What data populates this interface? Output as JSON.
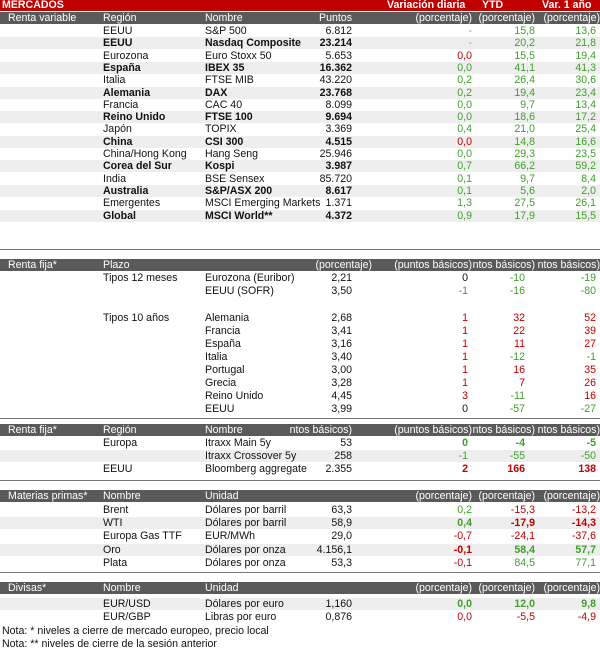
{
  "colors": {
    "accent": "#c00000",
    "header_bg": "#5a5a5a",
    "positive": "#3f9f2a",
    "negative": "#c00000",
    "neutral": "#9a9a9a"
  },
  "title": "MERCADOS",
  "title_cols": [
    "Variación diaria",
    "YTD",
    "Var. 1 año"
  ],
  "rv": {
    "header": [
      "Renta variable",
      "Región",
      "Nombre",
      "Puntos",
      "(porcentaje)",
      "(porcentaje)",
      "(porcentaje)"
    ],
    "rows": [
      {
        "region": "EEUU",
        "name": "S&P 500",
        "points": "6.812",
        "daily": "-",
        "ytd": "15,8",
        "y1": "13,6",
        "dc": "gy",
        "yc": "g",
        "ac": "g",
        "rb": false
      },
      {
        "region": "EEUU",
        "name": "Nasdaq Composite",
        "points": "23.214",
        "daily": "-",
        "ytd": "20,2",
        "y1": "21,8",
        "dc": "gy",
        "yc": "g",
        "ac": "g",
        "rb": true
      },
      {
        "region": "Eurozona",
        "name": "Euro Stoxx 50",
        "points": "5.653",
        "daily": "0,0",
        "ytd": "15,5",
        "y1": "19,4",
        "dc": "rd",
        "yc": "g",
        "ac": "g",
        "rb": false
      },
      {
        "region": "España",
        "name": "IBEX 35",
        "points": "16.362",
        "daily": "0,0",
        "ytd": "41,1",
        "y1": "41,3",
        "dc": "g",
        "yc": "g",
        "ac": "g",
        "rb": true
      },
      {
        "region": "Italia",
        "name": "FTSE MIB",
        "points": "43.220",
        "daily": "0,2",
        "ytd": "26,4",
        "y1": "30,6",
        "dc": "g",
        "yc": "g",
        "ac": "g",
        "rb": false
      },
      {
        "region": "Alemania",
        "name": "DAX",
        "points": "23.768",
        "daily": "0,2",
        "ytd": "19,4",
        "y1": "23,4",
        "dc": "g",
        "yc": "g",
        "ac": "g",
        "rb": true
      },
      {
        "region": "Francia",
        "name": "CAC 40",
        "points": "8.099",
        "daily": "0,0",
        "ytd": "9,7",
        "y1": "13,4",
        "dc": "g",
        "yc": "g",
        "ac": "g",
        "rb": false
      },
      {
        "region": "Reino Unido",
        "name": "FTSE 100",
        "points": "9.694",
        "daily": "0,0",
        "ytd": "18,6",
        "y1": "17,2",
        "dc": "g",
        "yc": "g",
        "ac": "g",
        "rb": true
      },
      {
        "region": "Japón",
        "name": "TOPIX",
        "points": "3.369",
        "daily": "0,4",
        "ytd": "21,0",
        "y1": "25,4",
        "dc": "g",
        "yc": "g",
        "ac": "g",
        "rb": false
      },
      {
        "region": "China",
        "name": "CSI 300",
        "points": "4.515",
        "daily": "0,0",
        "ytd": "14,8",
        "y1": "16,6",
        "dc": "rd",
        "yc": "g",
        "ac": "g",
        "rb": true
      },
      {
        "region": "China/Hong Kong",
        "name": "Hang Seng",
        "points": "25.946",
        "daily": "0,0",
        "ytd": "29,3",
        "y1": "23,5",
        "dc": "g",
        "yc": "g",
        "ac": "g",
        "rb": false
      },
      {
        "region": "Corea del Sur",
        "name": "Kospi",
        "points": "3.987",
        "daily": "0,7",
        "ytd": "66,2",
        "y1": "59,2",
        "dc": "g",
        "yc": "g",
        "ac": "g",
        "rb": true
      },
      {
        "region": "India",
        "name": "BSE Sensex",
        "points": "85.720",
        "daily": "0,1",
        "ytd": "9,7",
        "y1": "8,4",
        "dc": "g",
        "yc": "g",
        "ac": "g",
        "rb": false
      },
      {
        "region": "Australia",
        "name": "S&P/ASX 200",
        "points": "8.617",
        "daily": "0,1",
        "ytd": "5,6",
        "y1": "2,0",
        "dc": "g",
        "yc": "g",
        "ac": "g",
        "rb": true
      },
      {
        "region": "Emergentes",
        "name": "MSCI Emerging Markets",
        "points": "1.371",
        "daily": "1,3",
        "ytd": "27,5",
        "y1": "26,1",
        "dc": "g",
        "yc": "g",
        "ac": "g",
        "rb": false
      },
      {
        "region": "Global",
        "name": "MSCI World**",
        "points": "4.372",
        "daily": "0,9",
        "ytd": "17,9",
        "y1": "15,5",
        "dc": "g",
        "yc": "g",
        "ac": "g",
        "rb": true
      }
    ]
  },
  "rf": {
    "header": [
      "Renta fija*",
      "Plazo",
      "(porcentaje)",
      "(puntos básicos)",
      "ntos básicos)",
      "ntos básicos)"
    ],
    "rows": [
      {
        "plazo": "Tipos 12 meses",
        "name": "Eurozona (Euribor)",
        "val": "2,21",
        "d": "0",
        "ytd": "-10",
        "y1": "-19",
        "dc": "k",
        "yc": "g",
        "ac": "g",
        "rb": false
      },
      {
        "plazo": "",
        "name": "EEUU (SOFR)",
        "val": "3,50",
        "d": "-1",
        "ytd": "-16",
        "y1": "-80",
        "dc": "g",
        "yc": "g",
        "ac": "g",
        "rb": true
      },
      {
        "plazo": "Tipos 10 años",
        "name": "Alemania",
        "val": "2,68",
        "d": "1",
        "ytd": "32",
        "y1": "52",
        "dc": "rd",
        "yc": "rd",
        "ac": "rd",
        "rb": true
      },
      {
        "plazo": "",
        "name": "Francia",
        "val": "3,41",
        "d": "1",
        "ytd": "22",
        "y1": "39",
        "dc": "rd",
        "yc": "rd",
        "ac": "rd",
        "rb": false
      },
      {
        "plazo": "",
        "name": "España",
        "val": "3,16",
        "d": "1",
        "ytd": "11",
        "y1": "27",
        "dc": "rd",
        "yc": "rd",
        "ac": "rd",
        "rb": true
      },
      {
        "plazo": "",
        "name": "Italia",
        "val": "3,40",
        "d": "1",
        "ytd": "-12",
        "y1": "-1",
        "dc": "rd",
        "yc": "g",
        "ac": "g",
        "rb": false
      },
      {
        "plazo": "",
        "name": "Portugal",
        "val": "3,00",
        "d": "1",
        "ytd": "16",
        "y1": "35",
        "dc": "rd",
        "yc": "rd",
        "ac": "rd",
        "rb": true
      },
      {
        "plazo": "",
        "name": "Grecia",
        "val": "3,28",
        "d": "1",
        "ytd": "7",
        "y1": "26",
        "dc": "rd",
        "yc": "rd",
        "ac": "rd",
        "rb": false
      },
      {
        "plazo": "",
        "name": "Reino Unido",
        "val": "4,45",
        "d": "3",
        "ytd": "-11",
        "y1": "16",
        "dc": "rd",
        "yc": "g",
        "ac": "rd",
        "rb": true
      },
      {
        "plazo": "",
        "name": "EEUU",
        "val": "3,99",
        "d": "0",
        "ytd": "-57",
        "y1": "-27",
        "dc": "k",
        "yc": "g",
        "ac": "g",
        "rb": false
      }
    ]
  },
  "cr": {
    "header": [
      "Renta fija*",
      "Región",
      "Nombre",
      "ntos básicos)",
      "(puntos básicos)",
      "ntos básicos)",
      "ntos básicos)"
    ],
    "rows": [
      {
        "region": "Europa",
        "name": "Itraxx Main 5y",
        "val": "53",
        "d": "0",
        "ytd": "-4",
        "y1": "-5",
        "dc": "g",
        "yc": "g",
        "ac": "g",
        "rb": true
      },
      {
        "region": "",
        "name": "Itraxx Crossover 5y",
        "val": "258",
        "d": "-1",
        "ytd": "-55",
        "y1": "-50",
        "dc": "g",
        "yc": "g",
        "ac": "g",
        "rb": false
      },
      {
        "region": "EEUU",
        "name": "Bloomberg aggregate",
        "val": "2.355",
        "d": "2",
        "ytd": "166",
        "y1": "138",
        "dc": "rd",
        "yc": "rd",
        "ac": "rd",
        "rb": true
      }
    ]
  },
  "mp": {
    "header": [
      "Materias primas*",
      "Nombre",
      "Unidad",
      "(porcentaje)",
      "(porcentaje)",
      "(porcentaje)"
    ],
    "rows": [
      {
        "name": "Brent",
        "unit": "Dólares por barril",
        "val": "63,3",
        "d": "0,2",
        "ytd": "-15,3",
        "y1": "-13,2",
        "dc": "g",
        "yc": "rd",
        "ac": "rd",
        "rb": false
      },
      {
        "name": "WTI",
        "unit": "Dólares por barril",
        "val": "58,9",
        "d": "0,4",
        "ytd": "-17,9",
        "y1": "-14,3",
        "dc": "g",
        "yc": "rd",
        "ac": "rd",
        "rb": true
      },
      {
        "name": "Europa Gas TTF",
        "unit": "EUR/MWh",
        "val": "29,0",
        "d": "-0,7",
        "ytd": "-24,1",
        "y1": "-37,6",
        "dc": "rd",
        "yc": "rd",
        "ac": "rd",
        "rb": false
      },
      {
        "name": "Oro",
        "unit": "Dólares por onza",
        "val": "4.156,1",
        "d": "-0,1",
        "ytd": "58,4",
        "y1": "57,7",
        "dc": "rd",
        "yc": "g",
        "ac": "g",
        "rb": true
      },
      {
        "name": "Plata",
        "unit": "Dólares por onza",
        "val": "53,3",
        "d": "-0,1",
        "ytd": "84,5",
        "y1": "77,1",
        "dc": "rd",
        "yc": "g",
        "ac": "g",
        "rb": false
      }
    ]
  },
  "dv": {
    "header": [
      "Divisas*",
      "Nombre",
      "Unidad",
      "(porcentaje)",
      "(porcentaje)",
      "(porcentaje)"
    ],
    "rows": [
      {
        "name": "EUR/USD",
        "unit": "Dólares por euro",
        "val": "1,160",
        "d": "0,0",
        "ytd": "12,0",
        "y1": "9,8",
        "dc": "g",
        "yc": "g",
        "ac": "g",
        "rb": true
      },
      {
        "name": "EUR/GBP",
        "unit": "Libras por euro",
        "val": "0,876",
        "d": "0,0",
        "ytd": "-5,5",
        "y1": "-4,9",
        "dc": "rd",
        "yc": "rd",
        "ac": "rd",
        "rb": false
      }
    ]
  },
  "notes": [
    "Nota: * niveles a cierre de mercado europeo, precio local",
    "Nota: ** niveles de cierre de la sesión anterior"
  ]
}
